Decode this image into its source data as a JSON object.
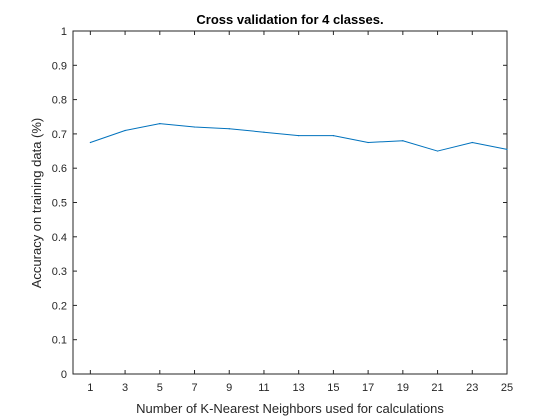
{
  "chart_data": {
    "type": "line",
    "title": "Cross validation for 4 classes.",
    "xlabel": "Number of K-Nearest Neighbors used for calculations",
    "ylabel": "Accuracy on training data (%)",
    "xlim": [
      0,
      25
    ],
    "ylim": [
      0,
      1
    ],
    "xticks": [
      1,
      3,
      5,
      7,
      9,
      11,
      13,
      15,
      17,
      19,
      21,
      23,
      25
    ],
    "yticks": [
      0,
      0.1,
      0.2,
      0.3,
      0.4,
      0.5,
      0.6,
      0.7,
      0.8,
      0.9,
      1
    ],
    "grid": false,
    "series": [
      {
        "color": "#0072BD",
        "x": [
          1,
          3,
          5,
          7,
          9,
          11,
          13,
          15,
          17,
          19,
          21,
          23,
          25
        ],
        "y": [
          0.675,
          0.71,
          0.73,
          0.72,
          0.715,
          0.705,
          0.695,
          0.695,
          0.675,
          0.68,
          0.65,
          0.675,
          0.655
        ]
      }
    ]
  }
}
